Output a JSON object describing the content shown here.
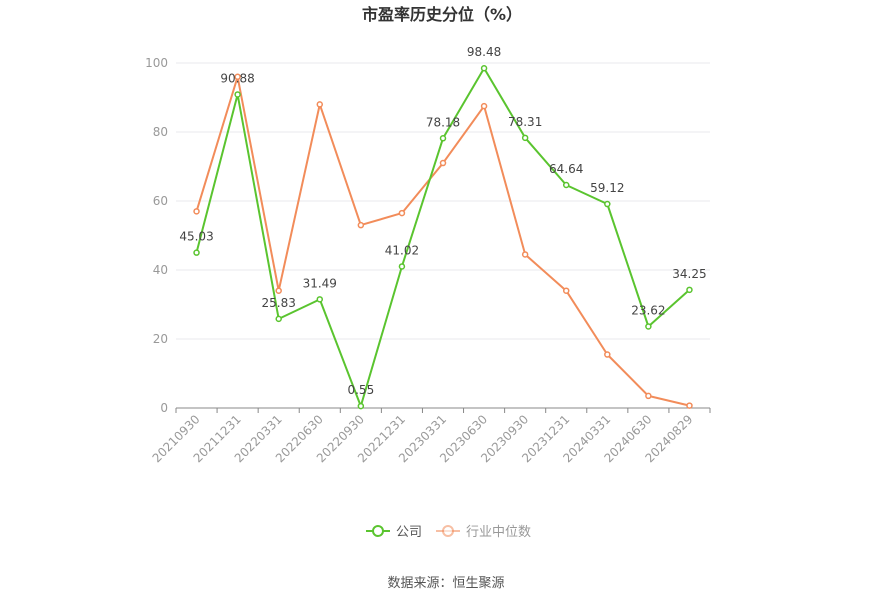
{
  "chart_data": {
    "type": "line",
    "title": "市盈率历史分位（%）",
    "xlabel": "",
    "ylabel": "",
    "categories": [
      "20210930",
      "20211231",
      "20220331",
      "20220630",
      "20220930",
      "20221231",
      "20230331",
      "20230630",
      "20230930",
      "20231231",
      "20240331",
      "20240630",
      "20240829"
    ],
    "y_ticks": [
      "0",
      "20",
      "40",
      "60",
      "80",
      "100"
    ],
    "ylim": [
      0,
      100
    ],
    "grid": true,
    "legend_position": "bottom",
    "series": [
      {
        "name": "公司",
        "color": "#5ac42f",
        "values": [
          45.03,
          90.88,
          25.83,
          31.49,
          0.55,
          41.02,
          78.18,
          98.48,
          78.31,
          64.64,
          59.12,
          23.62,
          34.25
        ],
        "labels": [
          "45.03",
          "90.88",
          "25.83",
          "31.49",
          "0.55",
          "41.02",
          "78.18",
          "98.48",
          "78.31",
          "64.64",
          "59.12",
          "23.62",
          "34.25"
        ]
      },
      {
        "name": "行业中位数",
        "color": "#f28c5a",
        "values": [
          57,
          96,
          34,
          88,
          53,
          56.5,
          71,
          87.5,
          44.5,
          34,
          15.5,
          3.5,
          0.7
        ]
      }
    ],
    "source": "数据来源：恒生聚源"
  }
}
